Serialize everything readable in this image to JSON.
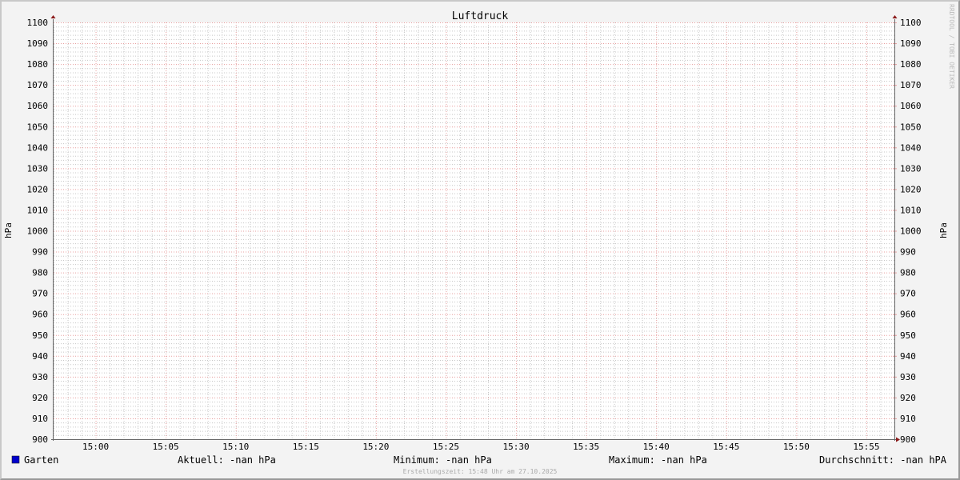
{
  "chart_data": {
    "type": "line",
    "title": "Luftdruck",
    "ylabel": "hPa",
    "ylabel_right": "hPa",
    "ylim": [
      900,
      1100
    ],
    "y_major_step": 10,
    "y_minor_step": 2,
    "y_ticks": [
      "900",
      "910",
      "920",
      "930",
      "940",
      "950",
      "960",
      "970",
      "980",
      "990",
      "1000",
      "1010",
      "1020",
      "1030",
      "1040",
      "1050",
      "1060",
      "1070",
      "1080",
      "1090",
      "1100"
    ],
    "xlim": [
      "14:57",
      "15:57"
    ],
    "x_ticks": [
      "15:00",
      "15:05",
      "15:10",
      "15:15",
      "15:20",
      "15:25",
      "15:30",
      "15:35",
      "15:40",
      "15:45",
      "15:50",
      "15:55"
    ],
    "x_major_step_min": 5,
    "x_minor_step_min": 1,
    "grid": true,
    "series": [
      {
        "name": "Garten",
        "color": "#0000cc",
        "values": []
      }
    ],
    "legend": {
      "series_label": "Garten",
      "current": "Aktuell: -nan hPa",
      "minimum": "Minimum: -nan hPa",
      "maximum": "Maximum: -nan hPa",
      "average": "Durchschnitt: -nan hPA"
    },
    "footer": "Erstellungszeit: 15:48 Uhr am 27.10.2025",
    "watermark": "RRDTOOL / TOBI OETIKER"
  },
  "colors": {
    "major_grid": "#e8a0a0",
    "minor_grid": "#c8c8c8",
    "axis": "#666666",
    "arrow": "#8b1a1a",
    "background": "#f3f3f3",
    "plot": "#ffffff"
  }
}
